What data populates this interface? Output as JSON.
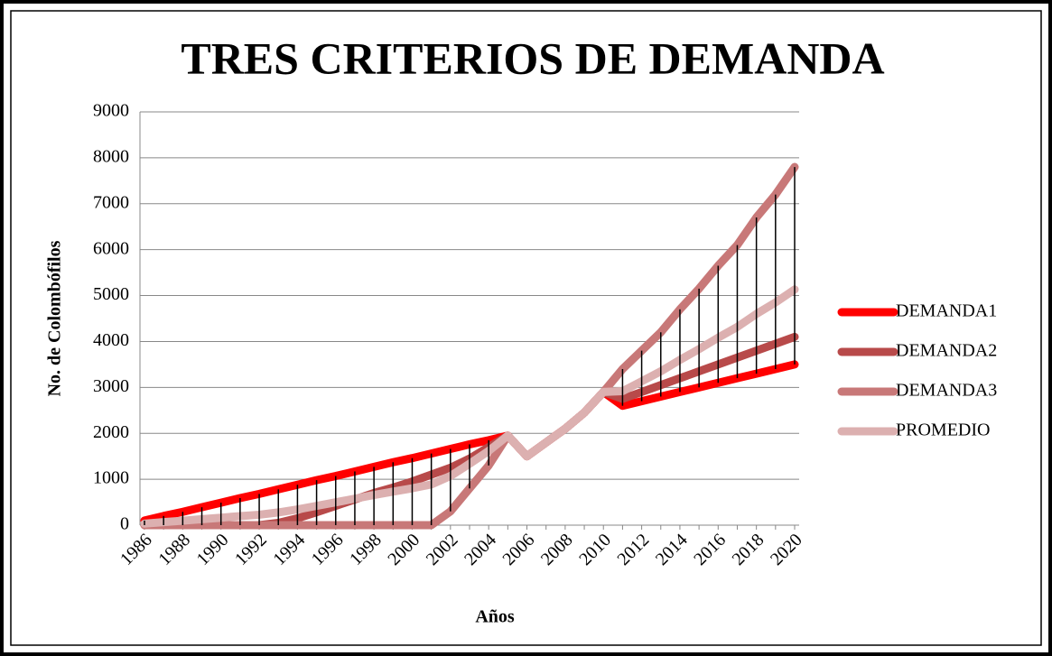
{
  "chart_data": {
    "type": "line",
    "title": "TRES CRITERIOS DE DEMANDA",
    "x_label": "Años",
    "y_label": "No. de Colombófilos",
    "categories": [
      "1986",
      null,
      "1988",
      null,
      "1990",
      null,
      "1992",
      null,
      "1994",
      null,
      "1996",
      null,
      "1998",
      null,
      "2000",
      null,
      "2002",
      null,
      "2004",
      null,
      "2006",
      null,
      "2008",
      null,
      "2010",
      null,
      "2012",
      null,
      "2014",
      null,
      "2016",
      null,
      "2018",
      null,
      "2020"
    ],
    "series": [
      {
        "name": "DEMANDA1",
        "color": "#ff0000",
        "values": [
          100,
          200,
          290,
          390,
          490,
          590,
          680,
          780,
          880,
          980,
          1070,
          1170,
          1270,
          1370,
          1460,
          1560,
          1660,
          1760,
          1850,
          1950,
          1500,
          1800,
          2100,
          2450,
          2900,
          2600,
          2700,
          2800,
          2900,
          3000,
          3100,
          3200,
          3300,
          3400,
          3500
        ]
      },
      {
        "name": "DEMANDA2",
        "color": "#b84a4a",
        "values": [
          0,
          0,
          0,
          0,
          0,
          0,
          0,
          50,
          150,
          280,
          420,
          560,
          700,
          820,
          950,
          1100,
          1250,
          1450,
          1700,
          1950,
          1500,
          1800,
          2100,
          2450,
          2900,
          2750,
          2900,
          3050,
          3200,
          3350,
          3500,
          3650,
          3800,
          3950,
          4100
        ]
      },
      {
        "name": "DEMANDA3",
        "color": "#c87878",
        "values": [
          0,
          0,
          0,
          0,
          0,
          0,
          0,
          0,
          0,
          0,
          0,
          0,
          0,
          0,
          0,
          0,
          300,
          800,
          1300,
          1950,
          1500,
          1800,
          2100,
          2450,
          2900,
          3400,
          3800,
          4200,
          4700,
          5150,
          5650,
          6100,
          6700,
          7200,
          7800
        ]
      },
      {
        "name": "PROMEDIO",
        "color": "#dcb0b0",
        "values": [
          33,
          67,
          97,
          130,
          163,
          197,
          227,
          277,
          343,
          420,
          497,
          577,
          657,
          730,
          803,
          887,
          1070,
          1337,
          1617,
          1950,
          1500,
          1800,
          2100,
          2450,
          2900,
          2917,
          3133,
          3350,
          3600,
          3833,
          4083,
          4317,
          4600,
          4850,
          5133
        ]
      }
    ],
    "ylim": [
      0,
      9000
    ],
    "yticks": [
      0,
      1000,
      2000,
      3000,
      4000,
      5000,
      6000,
      7000,
      8000,
      9000
    ],
    "grid": true,
    "high_low_lines": true,
    "legend": "right"
  }
}
